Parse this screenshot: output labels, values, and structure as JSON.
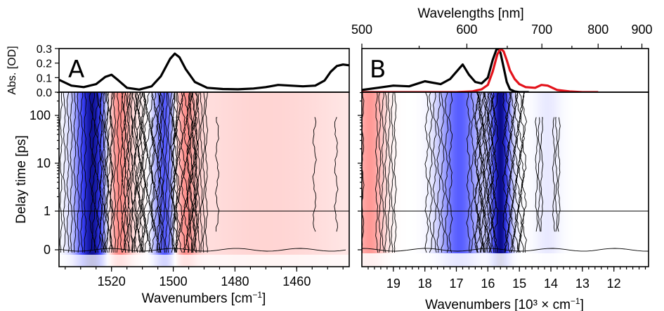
{
  "figure": {
    "top_axis_label": "Wavelengths [nm]",
    "top_axis_ticks": [
      {
        "label": "500",
        "wavenumber": 20.0
      },
      {
        "label": "600",
        "wavenumber": 16.667
      },
      {
        "label": "700",
        "wavenumber": 14.286
      },
      {
        "label": "800",
        "wavenumber": 12.5
      },
      {
        "label": "900",
        "wavenumber": 11.111
      }
    ],
    "abs_ylabel": "Abs. [OD]",
    "delay_ylabel": "Delay time [ps]",
    "panel_a": {
      "letter": "A",
      "xlabel": "Wavenumbers [cm",
      "xlabel_sup": "−1",
      "xlabel_end": "]"
    },
    "panel_b": {
      "letter": "B",
      "xlabel": "Wavenumbers [10³ × cm",
      "xlabel_sup": "−1",
      "xlabel_end": "]"
    },
    "colors": {
      "positive": "#e8474a",
      "negative": "#2f3fd0",
      "deep_negative": "#0a0a8a",
      "abs_black": "#000000",
      "emission_red": "#e3131b"
    }
  },
  "chart_data": [
    {
      "id": "A-absorption",
      "type": "line",
      "xlim": [
        1537,
        1443
      ],
      "ylim": [
        0.0,
        0.3
      ],
      "yticks": [
        "0.0",
        "0.1",
        "0.2",
        "0.3"
      ],
      "series": [
        {
          "color": "#000000",
          "x": [
            1537,
            1533,
            1529,
            1525,
            1522,
            1520,
            1518,
            1515,
            1511,
            1507,
            1504,
            1501,
            1499.5,
            1498,
            1496,
            1493,
            1489,
            1484,
            1479,
            1474,
            1470,
            1466,
            1462,
            1458,
            1454,
            1451,
            1449,
            1447,
            1445,
            1443
          ],
          "y": [
            0.085,
            0.045,
            0.035,
            0.055,
            0.105,
            0.12,
            0.085,
            0.03,
            0.018,
            0.04,
            0.11,
            0.23,
            0.265,
            0.24,
            0.16,
            0.07,
            0.03,
            0.022,
            0.02,
            0.025,
            0.035,
            0.05,
            0.045,
            0.04,
            0.045,
            0.08,
            0.14,
            0.18,
            0.19,
            0.185
          ]
        }
      ]
    },
    {
      "id": "A-transient",
      "type": "heatmap",
      "xticks": [
        "1520",
        "1500",
        "1480",
        "1460"
      ],
      "xtick_values": [
        1520,
        1500,
        1480,
        1460
      ],
      "xlim": [
        1537,
        1443
      ],
      "yscale": "linear below 1 ps, log above 1 ps",
      "yticks": [
        "0",
        "1",
        "10",
        "100"
      ],
      "ylim": [
        -0.6,
        300
      ],
      "contour_bands": [
        {
          "sign": "negative",
          "center": 1526,
          "width": 4,
          "strength": 1.0
        },
        {
          "sign": "positive",
          "center": 1518,
          "width": 3,
          "strength": 0.75
        },
        {
          "sign": "negative",
          "center": 1502,
          "width": 3,
          "strength": 0.85
        },
        {
          "sign": "positive",
          "center": 1497,
          "width": 3,
          "strength": 0.65
        },
        {
          "sign": "positive",
          "center": 1470,
          "width": 25,
          "strength": 0.25
        }
      ],
      "reference_line_delay": 1
    },
    {
      "id": "B-spectra",
      "type": "line",
      "xlim": [
        20.0,
        10.9
      ],
      "ylim": [
        0.0,
        0.3
      ],
      "series": [
        {
          "color": "#000000",
          "x": [
            20.0,
            19.5,
            19.0,
            18.5,
            18.0,
            17.5,
            17.2,
            17.0,
            16.8,
            16.6,
            16.4,
            16.2,
            16.0,
            15.85,
            15.7,
            15.6,
            15.5,
            15.4,
            15.3,
            15.15,
            15.0,
            14.7
          ],
          "y": [
            0.015,
            0.03,
            0.045,
            0.04,
            0.075,
            0.055,
            0.09,
            0.14,
            0.19,
            0.12,
            0.07,
            0.06,
            0.1,
            0.22,
            0.31,
            0.27,
            0.17,
            0.07,
            0.02,
            0.005,
            0.0,
            0.0
          ]
        },
        {
          "color": "#e3131b",
          "x": [
            20.0,
            17.0,
            16.5,
            16.2,
            16.0,
            15.85,
            15.7,
            15.6,
            15.5,
            15.4,
            15.3,
            15.15,
            15.0,
            14.8,
            14.5,
            14.3,
            14.1,
            13.8,
            13.4,
            13.0,
            12.5
          ],
          "y": [
            0.0,
            0.0,
            0.005,
            0.02,
            0.05,
            0.14,
            0.26,
            0.3,
            0.28,
            0.22,
            0.15,
            0.09,
            0.055,
            0.035,
            0.03,
            0.05,
            0.045,
            0.015,
            0.005,
            0.0,
            0.0
          ]
        }
      ]
    },
    {
      "id": "B-transient",
      "type": "heatmap",
      "xticks": [
        "19",
        "18",
        "17",
        "16",
        "15",
        "14",
        "13",
        "12"
      ],
      "xtick_values": [
        19,
        18,
        17,
        16,
        15,
        14,
        13,
        12
      ],
      "xlim": [
        20.0,
        10.9
      ],
      "yscale": "linear below 1 ps, log above 1 ps",
      "yticks": [
        "0",
        "1",
        "10",
        "100"
      ],
      "ylim": [
        -0.6,
        300
      ],
      "contour_bands": [
        {
          "sign": "positive",
          "center": 19.75,
          "width": 0.35,
          "strength": 0.6
        },
        {
          "sign": "negative",
          "center": 16.9,
          "width": 0.45,
          "strength": 0.6
        },
        {
          "sign": "negative",
          "center": 15.6,
          "width": 0.22,
          "strength": 1.0
        },
        {
          "sign": "negative",
          "center": 14.1,
          "width": 0.3,
          "strength": 0.08
        }
      ],
      "reference_line_delay": 1
    }
  ]
}
